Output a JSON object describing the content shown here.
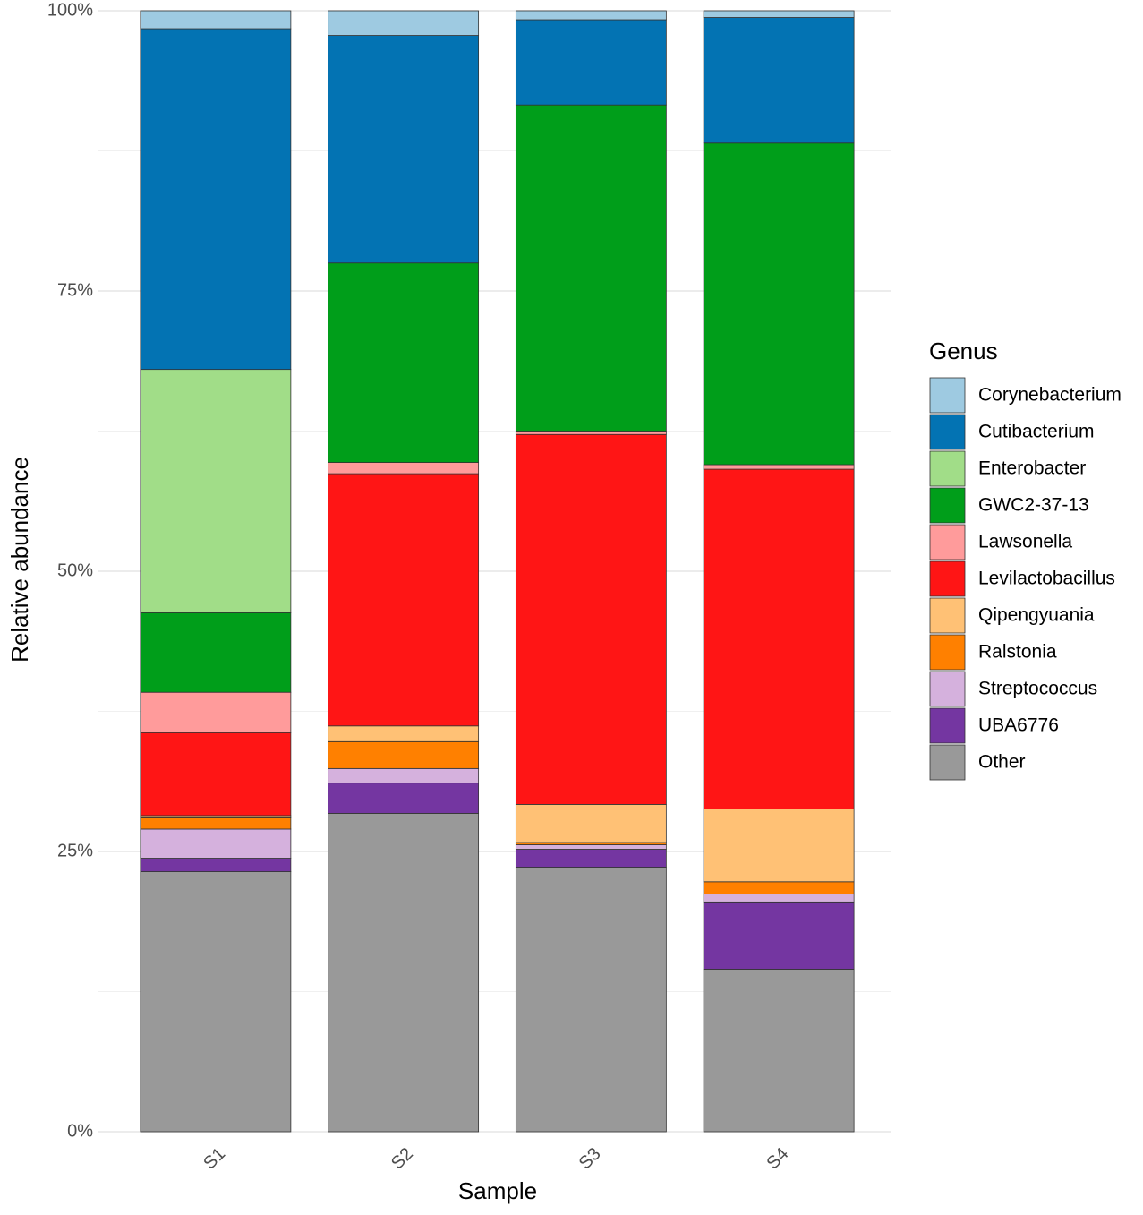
{
  "chart_data": {
    "type": "stacked_bar",
    "x_label": "Sample",
    "y_label": "Relative abundance",
    "legend_title": "Genus",
    "categories": [
      "S1",
      "S2",
      "S3",
      "S4"
    ],
    "series": [
      {
        "name": "Corynebacterium",
        "color": "#9ecae1",
        "values": [
          1.6,
          2.2,
          0.8,
          0.6
        ]
      },
      {
        "name": "Cutibacterium",
        "color": "#0373b3",
        "values": [
          30.4,
          20.3,
          7.6,
          11.2
        ]
      },
      {
        "name": "Enterobacter",
        "color": "#a1dd88",
        "values": [
          21.7,
          0,
          0,
          0
        ]
      },
      {
        "name": "GWC2-37-13",
        "color": "#009e1a",
        "values": [
          7.1,
          17.8,
          29.1,
          28.7
        ]
      },
      {
        "name": "Lawsonella",
        "color": "#ff9b9b",
        "values": [
          3.6,
          1.0,
          0.3,
          0.4
        ]
      },
      {
        "name": "Levilactobacillus",
        "color": "#ff1515",
        "values": [
          7.4,
          22.5,
          33.0,
          30.3
        ]
      },
      {
        "name": "Qipengyuania",
        "color": "#ffc175",
        "values": [
          0.2,
          1.4,
          3.4,
          6.5
        ]
      },
      {
        "name": "Ralstonia",
        "color": "#ff8000",
        "values": [
          1.0,
          2.4,
          0.2,
          1.1
        ]
      },
      {
        "name": "Streptococcus",
        "color": "#d5b1dd",
        "values": [
          2.6,
          1.3,
          0.4,
          0.7
        ]
      },
      {
        "name": "UBA6776",
        "color": "#7436a1",
        "values": [
          1.2,
          2.7,
          1.6,
          6.0
        ]
      },
      {
        "name": "Other",
        "color": "#999999",
        "values": [
          23.2,
          28.4,
          23.6,
          14.5
        ]
      }
    ],
    "ylim": [
      0,
      100
    ],
    "yticks": [
      {
        "value": 0,
        "label": "0%"
      },
      {
        "value": 25,
        "label": "25%"
      },
      {
        "value": 50,
        "label": "50%"
      },
      {
        "value": 75,
        "label": "75%"
      },
      {
        "value": 100,
        "label": "100%"
      }
    ],
    "grid": true,
    "minor_grid": true,
    "legend_position": "right"
  }
}
